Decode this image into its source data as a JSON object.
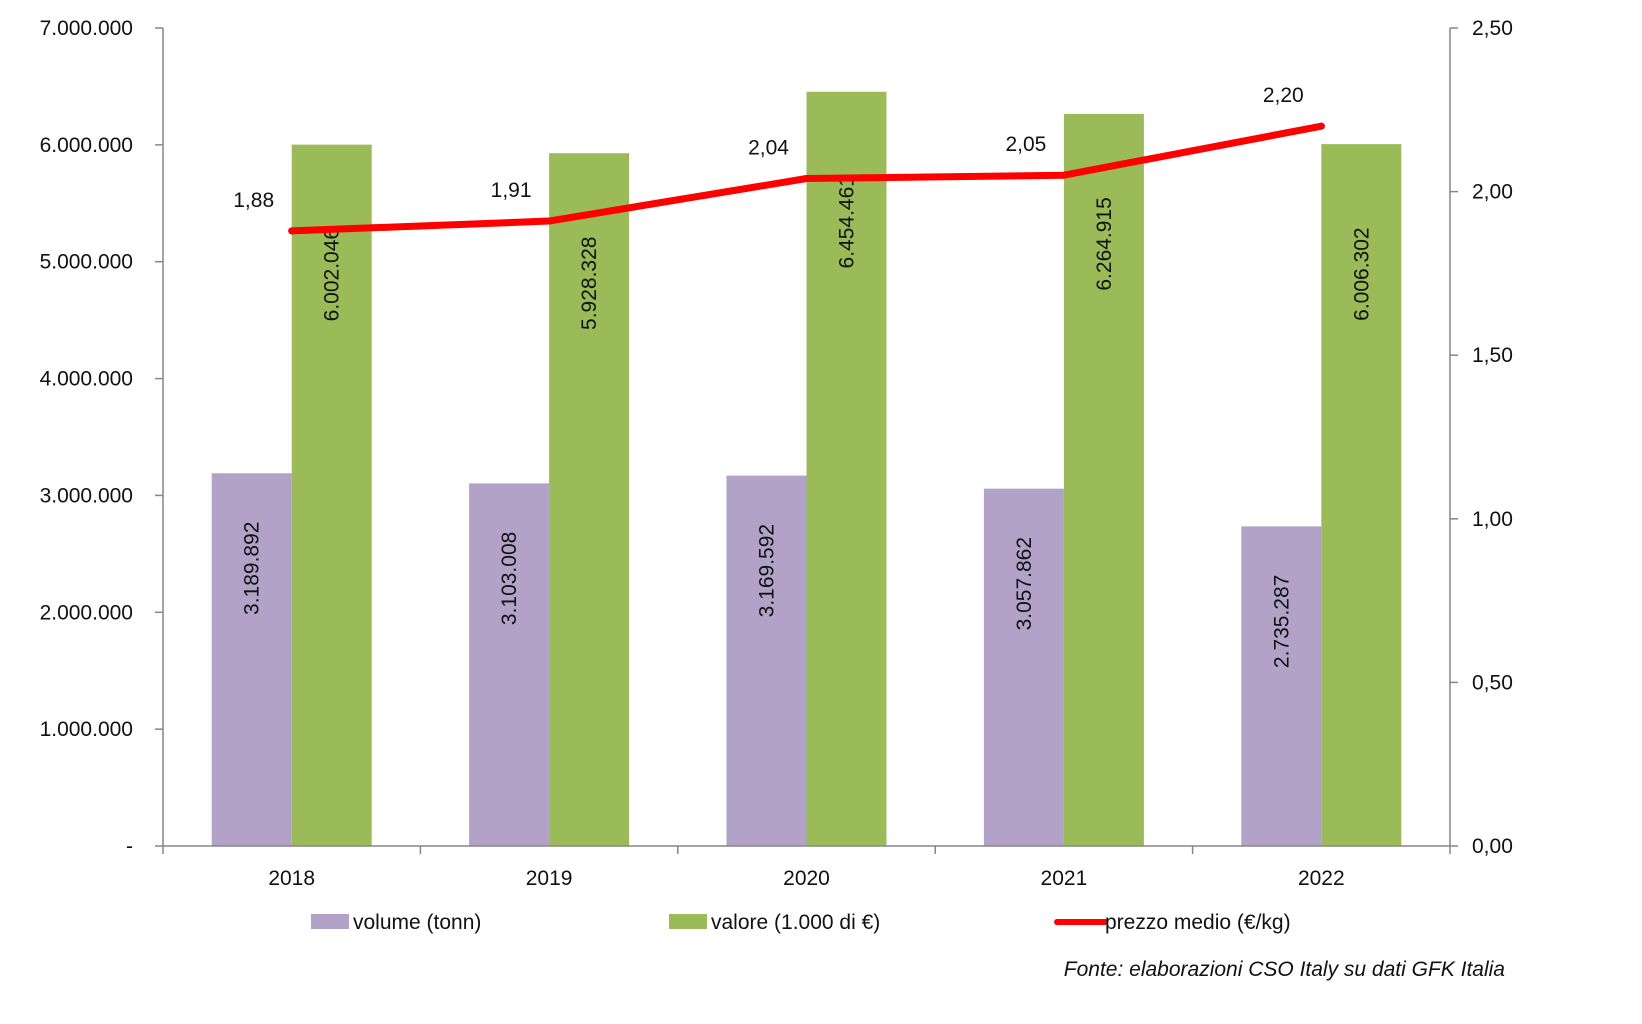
{
  "chart_data": {
    "type": "bar",
    "categories": [
      "2018",
      "2019",
      "2020",
      "2021",
      "2022"
    ],
    "series": [
      {
        "name": "volume (tonn)",
        "kind": "bar",
        "axis": "left",
        "color": "#b3a2c7",
        "values": [
          3189892,
          3103008,
          3169592,
          3057862,
          2735287
        ],
        "labels": [
          "3.189.892",
          "3.103.008",
          "3.169.592",
          "3.057.862",
          "2.735.287"
        ]
      },
      {
        "name": "valore (1.000 di €)",
        "kind": "bar",
        "axis": "left",
        "color": "#9bbb59",
        "values": [
          6002046,
          5928328,
          6454461,
          6264915,
          6006302
        ],
        "labels": [
          "6.002.046",
          "5.928.328",
          "6.454.461",
          "6.264.915",
          "6.006.302"
        ]
      },
      {
        "name": "prezzo medio (€/kg)",
        "kind": "line",
        "axis": "right",
        "color": "#ff0000",
        "values": [
          1.88,
          1.91,
          2.04,
          2.05,
          2.2
        ],
        "labels": [
          "1,88",
          "1,91",
          "2,04",
          "2,05",
          "2,20"
        ]
      }
    ],
    "y_left": {
      "min": 0,
      "max": 7000000,
      "ticks": [
        0,
        1000000,
        2000000,
        3000000,
        4000000,
        5000000,
        6000000,
        7000000
      ],
      "tick_labels": [
        "-",
        "1.000.000",
        "2.000.000",
        "3.000.000",
        "4.000.000",
        "5.000.000",
        "6.000.000",
        "7.000.000"
      ]
    },
    "y_right": {
      "min": 0,
      "max": 2.5,
      "ticks": [
        0,
        0.5,
        1.0,
        1.5,
        2.0,
        2.5
      ],
      "tick_labels": [
        "0,00",
        "0,50",
        "1,00",
        "1,50",
        "2,00",
        "2,50"
      ]
    },
    "legend_position": "bottom",
    "grid": false,
    "source": "Fonte: elaborazioni CSO Italy su dati GFK Italia"
  }
}
